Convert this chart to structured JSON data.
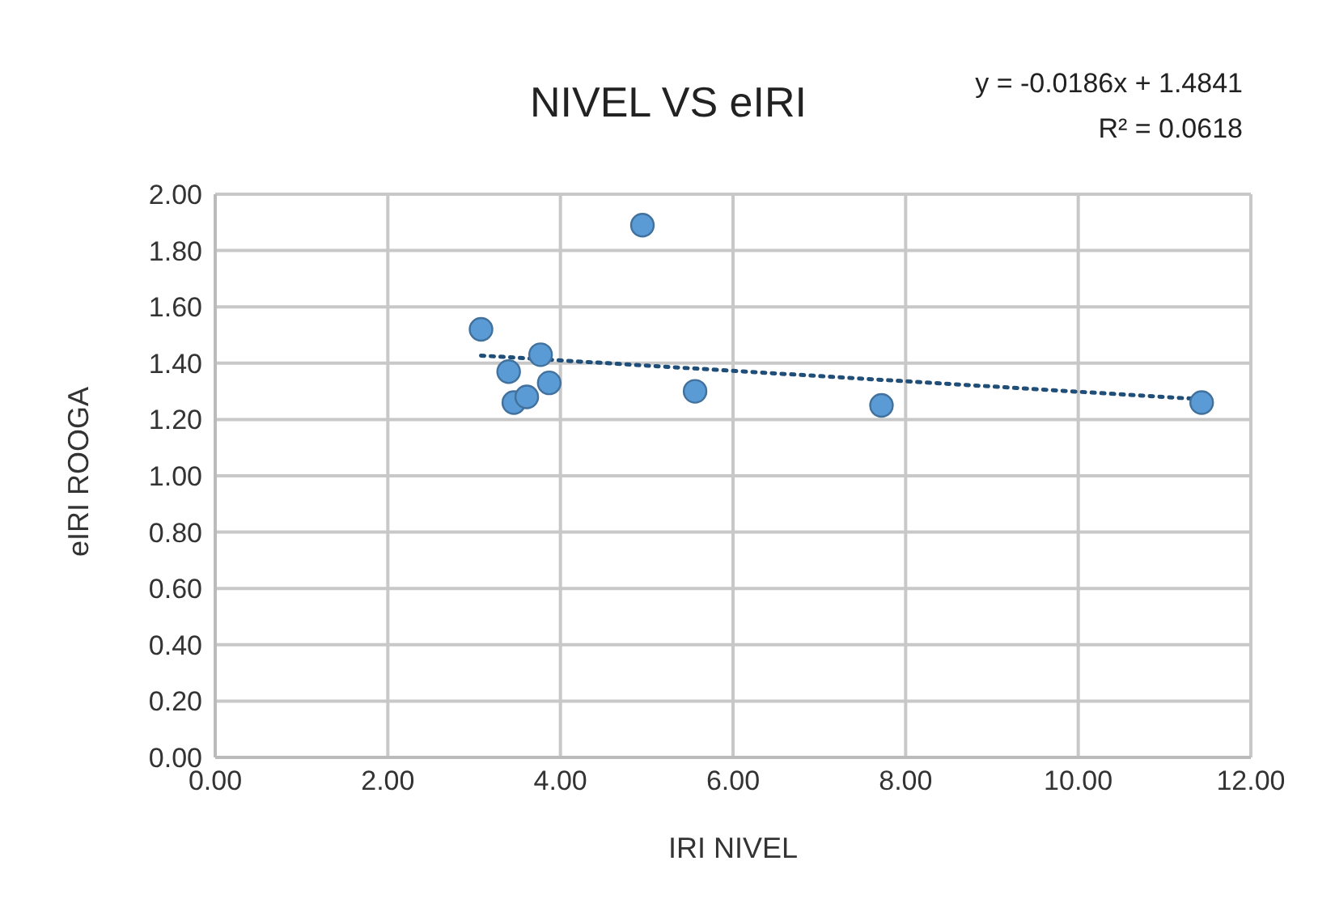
{
  "chart_data": {
    "type": "scatter",
    "title": "NIVEL VS eIRI",
    "xlabel": "IRI NIVEL",
    "ylabel": "eIRI ROOGA",
    "annotations": [
      "y = -0.0186x + 1.4841",
      "R² = 0.0618"
    ],
    "series": [
      {
        "color": "#5b9bd5",
        "x": [
          3.08,
          3.4,
          3.46,
          3.61,
          3.77,
          3.87,
          4.95,
          5.56,
          7.72,
          11.43
        ],
        "values": [
          1.52,
          1.37,
          1.26,
          1.28,
          1.43,
          1.33,
          1.89,
          1.3,
          1.25,
          1.26
        ],
        "marker": "circle"
      },
      {
        "type": "line",
        "color": "#1f4e79",
        "x": [
          3.08,
          11.43
        ],
        "values": [
          1.427,
          1.272
        ],
        "line_style": "dotted",
        "marker": "none"
      }
    ],
    "xlim": [
      0,
      12
    ],
    "xticks": [
      {
        "value": 0,
        "label": "0.00"
      },
      {
        "value": 2,
        "label": "2.00"
      },
      {
        "value": 4,
        "label": "4.00"
      },
      {
        "value": 6,
        "label": "6.00"
      },
      {
        "value": 8,
        "label": "8.00"
      },
      {
        "value": 10,
        "label": "10.00"
      },
      {
        "value": 12,
        "label": "12.00"
      }
    ],
    "ylim": [
      0,
      2
    ],
    "yticks": [
      {
        "value": 0,
        "label": "0.00"
      },
      {
        "value": 0.2,
        "label": "0.20"
      },
      {
        "value": 0.4,
        "label": "0.40"
      },
      {
        "value": 0.6,
        "label": "0.60"
      },
      {
        "value": 0.8,
        "label": "0.80"
      },
      {
        "value": 1,
        "label": "1.00"
      },
      {
        "value": 1.2,
        "label": "1.20"
      },
      {
        "value": 1.4,
        "label": "1.40"
      },
      {
        "value": 1.6,
        "label": "1.60"
      },
      {
        "value": 1.8,
        "label": "1.80"
      },
      {
        "value": 2,
        "label": "2.00"
      }
    ],
    "grid": true
  }
}
